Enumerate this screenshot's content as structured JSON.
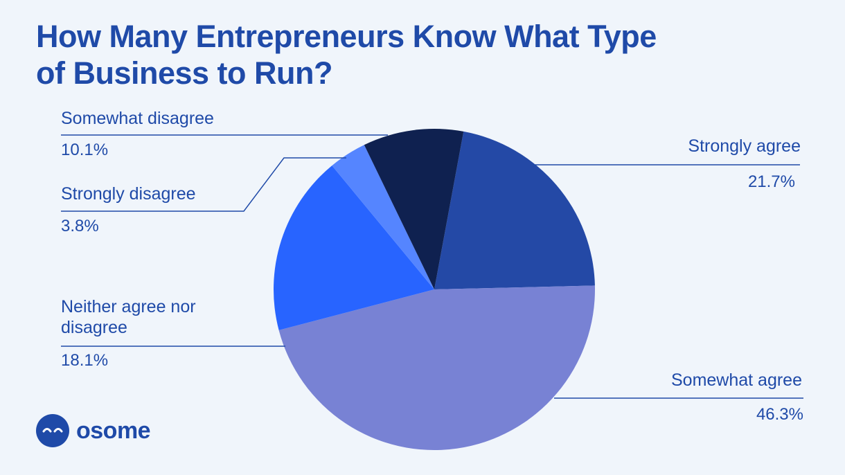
{
  "chart_data": {
    "type": "pie",
    "title": "How Many Entrepreneurs Know What Type of Business to Run?",
    "categories": [
      "Strongly agree",
      "Somewhat agree",
      "Neither agree nor disagree",
      "Strongly disagree",
      "Somewhat disagree"
    ],
    "values": [
      21.7,
      46.3,
      18.1,
      3.8,
      10.1
    ],
    "value_labels": [
      "21.7%",
      "46.3%",
      "18.1%",
      "3.8%",
      "10.1%"
    ],
    "colors": [
      "#2449a6",
      "#7882d4",
      "#2864ff",
      "#5585ff",
      "#0f2150"
    ]
  },
  "logo": "osome"
}
